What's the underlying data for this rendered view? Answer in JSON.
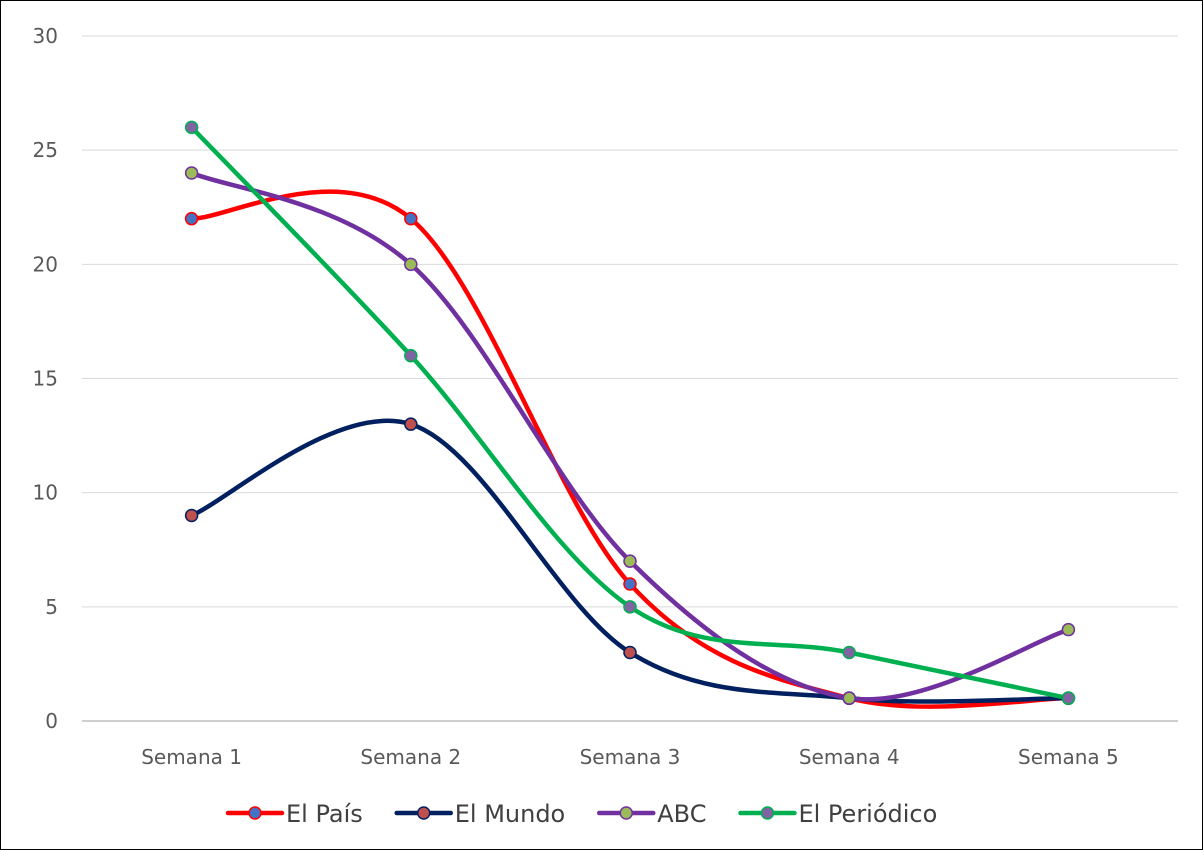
{
  "chart_data": {
    "type": "line",
    "smooth": true,
    "title": "",
    "xlabel": "",
    "ylabel": "",
    "categories": [
      "Semana 1",
      "Semana 2",
      "Semana 3",
      "Semana 4",
      "Semana 5"
    ],
    "ylim": [
      0,
      30
    ],
    "yticks": [
      0,
      5,
      10,
      15,
      20,
      25,
      30
    ],
    "grid": true,
    "legend_position": "bottom",
    "series": [
      {
        "name": "El País",
        "values": [
          22,
          22,
          6,
          1,
          1
        ],
        "line_color": "#ff0000",
        "marker_color": "#4472c4"
      },
      {
        "name": "El Mundo",
        "values": [
          9,
          13,
          3,
          1,
          1
        ],
        "line_color": "#002060",
        "marker_color": "#c0504d"
      },
      {
        "name": "ABC",
        "values": [
          24,
          20,
          7,
          1,
          4
        ],
        "line_color": "#7030a0",
        "marker_color": "#9bbb59"
      },
      {
        "name": "El Periódico",
        "values": [
          26,
          16,
          5,
          3,
          1
        ],
        "line_color": "#00b050",
        "marker_color": "#8064a2"
      }
    ]
  }
}
